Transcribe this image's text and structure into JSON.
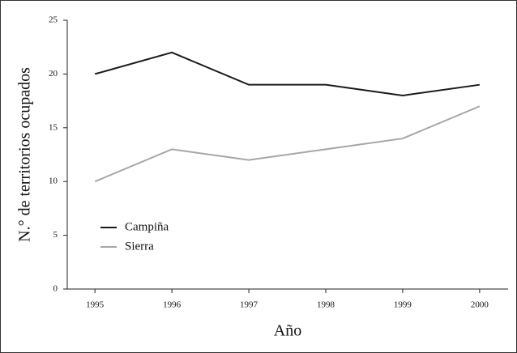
{
  "chart_data": {
    "type": "line",
    "x": [
      1995,
      1996,
      1997,
      1998,
      1999,
      2000
    ],
    "series": [
      {
        "name": "Campiña",
        "color": "#1a1a1a",
        "values": [
          20,
          22,
          19,
          19,
          18,
          19
        ]
      },
      {
        "name": "Sierra",
        "color": "#a6a6a6",
        "values": [
          10,
          13,
          12,
          13,
          14,
          17
        ]
      }
    ],
    "xlabel": "Año",
    "ylabel": "N.° de territorios ocupados",
    "xlim": [
      1994.64,
      2000.37
    ],
    "xticks": [
      1995,
      1996,
      1997,
      1998,
      1999,
      2000
    ],
    "ylim": [
      0,
      25
    ],
    "yticks": [
      0,
      5,
      10,
      15,
      20,
      25
    ],
    "legend": "lower left"
  }
}
